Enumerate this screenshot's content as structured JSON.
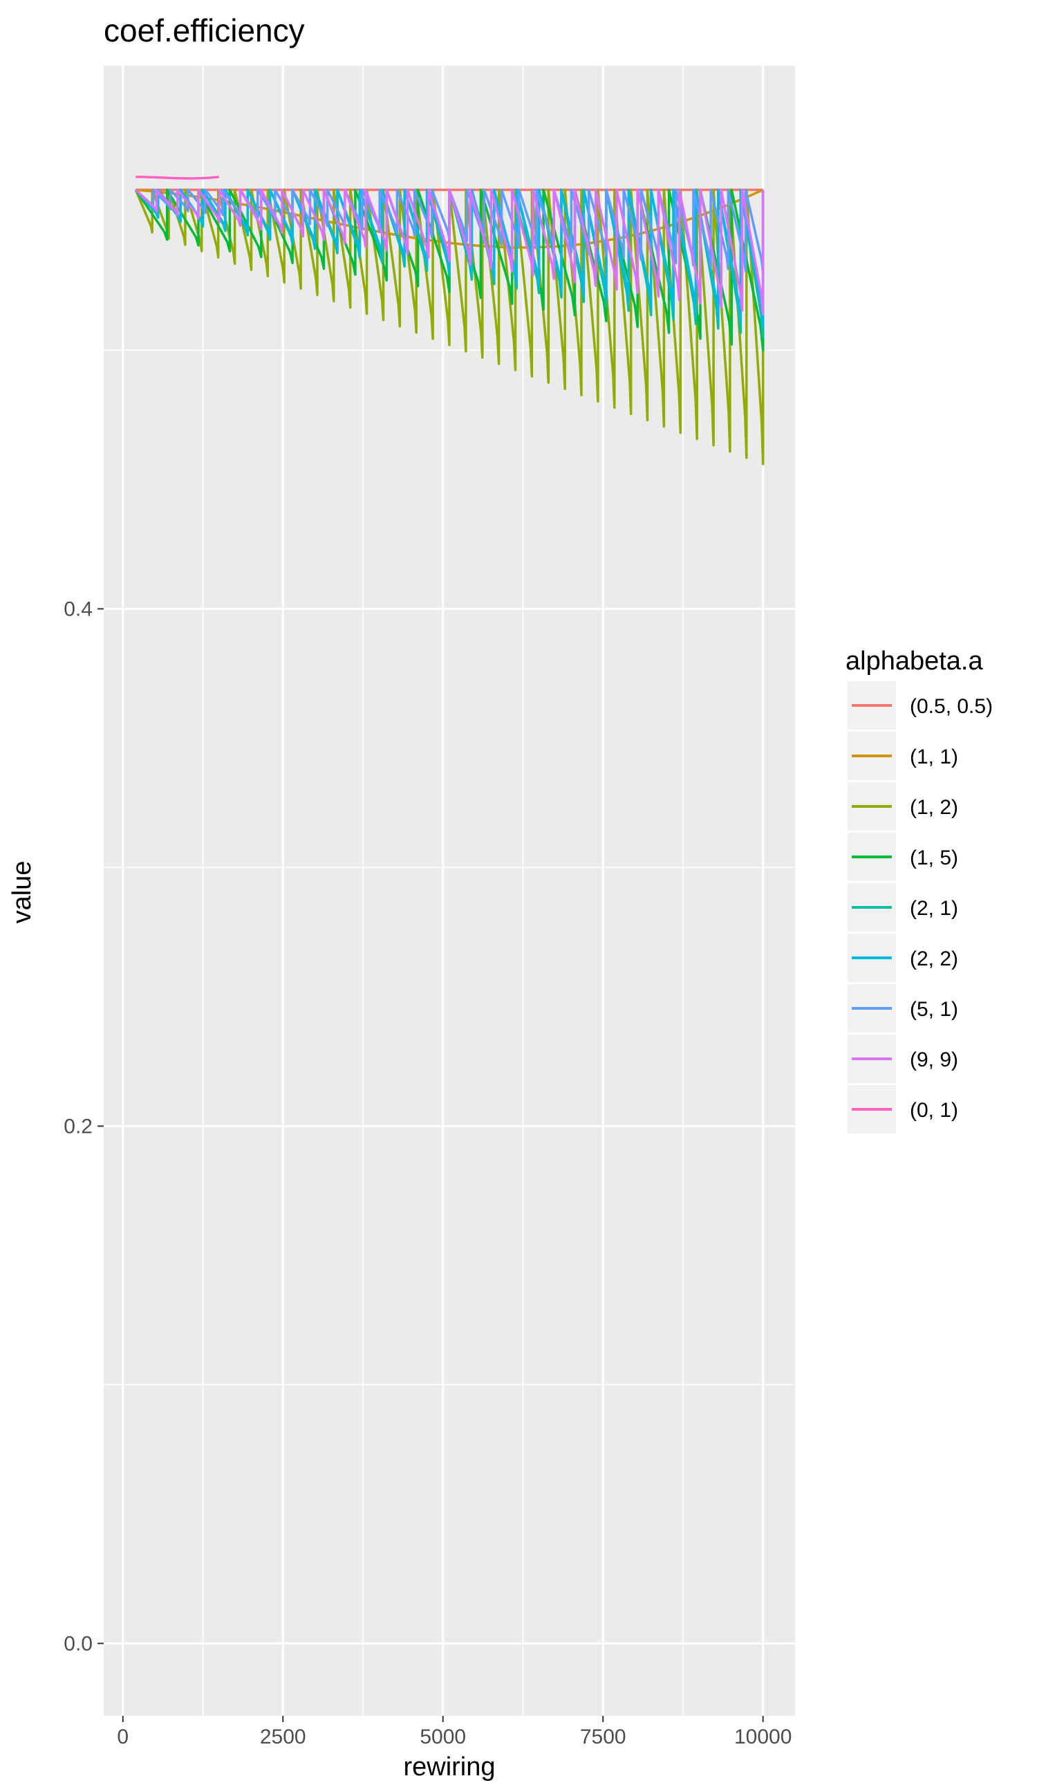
{
  "chart_data": {
    "type": "line",
    "title": "coef.efficiency",
    "xlabel": "rewiring",
    "ylabel": "value",
    "xlim": [
      -300,
      10500
    ],
    "ylim": [
      -0.028,
      0.61
    ],
    "x_ticks": [
      0,
      2500,
      5000,
      7500,
      10000
    ],
    "x_tick_labels": [
      "0",
      "2500",
      "5000",
      "7500",
      "10000"
    ],
    "y_ticks": [
      0.0,
      0.2,
      0.4
    ],
    "y_tick_labels": [
      "0.0",
      "0.2",
      "0.4"
    ],
    "grid": true,
    "legend_title": "alphabeta.a",
    "legend_position": "right",
    "series": [
      {
        "name": "(0.5, 0.5)",
        "color": "#F8766D",
        "start": 200,
        "stop": 10000,
        "top": 0.562,
        "floor_start": 0.562,
        "floor_end": 0.562,
        "teeth": 0
      },
      {
        "name": "(1, 1)",
        "color": "#D39200",
        "start": 200,
        "stop": 10000,
        "top": 0.562,
        "floor_start": 0.556,
        "floor_end": 0.527,
        "teeth": 0
      },
      {
        "name": "(1, 2)",
        "color": "#93AA00",
        "start": 200,
        "stop": 10000,
        "top": 0.562,
        "floor_start": 0.548,
        "floor_end": 0.456,
        "teeth": 38
      },
      {
        "name": "(1, 5)",
        "color": "#00BA38",
        "start": 200,
        "stop": 10000,
        "top": 0.562,
        "floor_start": 0.545,
        "floor_end": 0.5,
        "teeth": 20
      },
      {
        "name": "(2, 1)",
        "color": "#00C19F",
        "start": 200,
        "stop": 10000,
        "top": 0.562,
        "floor_start": 0.553,
        "floor_end": 0.505,
        "teeth": 28
      },
      {
        "name": "(2, 2)",
        "color": "#00B9E3",
        "start": 200,
        "stop": 10000,
        "top": 0.562,
        "floor_start": 0.553,
        "floor_end": 0.509,
        "teeth": 28
      },
      {
        "name": "(5, 1)",
        "color": "#619CFF",
        "start": 200,
        "stop": 10000,
        "top": 0.562,
        "floor_start": 0.556,
        "floor_end": 0.53,
        "teeth": 36
      },
      {
        "name": "(9, 9)",
        "color": "#DB72FB",
        "start": 200,
        "stop": 10000,
        "top": 0.562,
        "floor_start": 0.555,
        "floor_end": 0.514,
        "teeth": 30
      },
      {
        "name": "(0, 1)",
        "color": "#FF61C3",
        "start": 200,
        "stop": 1500,
        "top": 0.567,
        "floor_start": 0.567,
        "floor_end": 0.566,
        "teeth": 0
      }
    ]
  }
}
